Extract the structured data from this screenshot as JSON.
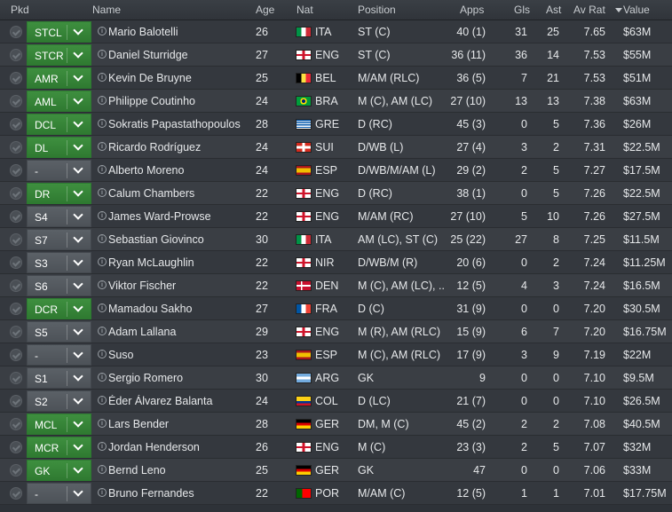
{
  "header": {
    "pkd": "Pkd",
    "name": "Name",
    "age": "Age",
    "nat": "Nat",
    "position": "Position",
    "apps": "Apps",
    "gls": "Gls",
    "ast": "Ast",
    "avrat": "Av Rat",
    "value": "Value",
    "sort_indicator_icon": "caret-down-icon"
  },
  "colors": {
    "assigned_position": "#3e8f3f",
    "unassigned_position": "#5b6167"
  },
  "players": [
    {
      "pos": "STCL",
      "name": "Mario Balotelli",
      "age": "26",
      "nat": "ITA",
      "flag": "ita",
      "position": "ST (C)",
      "apps": "40 (1)",
      "gls": "31",
      "ast": "25",
      "rat": "7.65",
      "value": "$63M",
      "assigned": true
    },
    {
      "pos": "STCR",
      "name": "Daniel Sturridge",
      "age": "27",
      "nat": "ENG",
      "flag": "eng",
      "position": "ST (C)",
      "apps": "36 (11)",
      "gls": "36",
      "ast": "14",
      "rat": "7.53",
      "value": "$55M",
      "assigned": true
    },
    {
      "pos": "AMR",
      "name": "Kevin De Bruyne",
      "age": "25",
      "nat": "BEL",
      "flag": "bel",
      "position": "M/AM (RLC)",
      "apps": "36 (5)",
      "gls": "7",
      "ast": "21",
      "rat": "7.53",
      "value": "$51M",
      "assigned": true
    },
    {
      "pos": "AML",
      "name": "Philippe Coutinho",
      "age": "24",
      "nat": "BRA",
      "flag": "bra",
      "position": "M (C), AM (LC)",
      "apps": "27 (10)",
      "gls": "13",
      "ast": "13",
      "rat": "7.38",
      "value": "$63M",
      "assigned": true
    },
    {
      "pos": "DCL",
      "name": "Sokratis Papastathopoulos",
      "age": "28",
      "nat": "GRE",
      "flag": "gre",
      "position": "D (RC)",
      "apps": "45 (3)",
      "gls": "0",
      "ast": "5",
      "rat": "7.36",
      "value": "$26M",
      "assigned": true
    },
    {
      "pos": "DL",
      "name": "Ricardo Rodríguez",
      "age": "24",
      "nat": "SUI",
      "flag": "sui",
      "position": "D/WB (L)",
      "apps": "27 (4)",
      "gls": "3",
      "ast": "2",
      "rat": "7.31",
      "value": "$22.5M",
      "assigned": true
    },
    {
      "pos": "-",
      "name": "Alberto Moreno",
      "age": "24",
      "nat": "ESP",
      "flag": "esp",
      "position": "D/WB/M/AM (L)",
      "apps": "29 (2)",
      "gls": "2",
      "ast": "5",
      "rat": "7.27",
      "value": "$17.5M",
      "assigned": false
    },
    {
      "pos": "DR",
      "name": "Calum Chambers",
      "age": "22",
      "nat": "ENG",
      "flag": "eng",
      "position": "D (RC)",
      "apps": "38 (1)",
      "gls": "0",
      "ast": "5",
      "rat": "7.26",
      "value": "$22.5M",
      "assigned": true
    },
    {
      "pos": "S4",
      "name": "James Ward-Prowse",
      "age": "22",
      "nat": "ENG",
      "flag": "eng",
      "position": "M/AM (RC)",
      "apps": "27 (10)",
      "gls": "5",
      "ast": "10",
      "rat": "7.26",
      "value": "$27.5M",
      "assigned": false
    },
    {
      "pos": "S7",
      "name": "Sebastian Giovinco",
      "age": "30",
      "nat": "ITA",
      "flag": "ita",
      "position": "AM (LC), ST (C)",
      "apps": "25 (22)",
      "gls": "27",
      "ast": "8",
      "rat": "7.25",
      "value": "$11.5M",
      "assigned": false
    },
    {
      "pos": "S3",
      "name": "Ryan McLaughlin",
      "age": "22",
      "nat": "NIR",
      "flag": "eng",
      "position": "D/WB/M (R)",
      "apps": "20 (6)",
      "gls": "0",
      "ast": "2",
      "rat": "7.24",
      "value": "$11.25M",
      "assigned": false
    },
    {
      "pos": "S6",
      "name": "Viktor Fischer",
      "age": "22",
      "nat": "DEN",
      "flag": "den",
      "position": "M (C), AM (LC), ...",
      "apps": "12 (5)",
      "gls": "4",
      "ast": "3",
      "rat": "7.24",
      "value": "$16.5M",
      "assigned": false
    },
    {
      "pos": "DCR",
      "name": "Mamadou Sakho",
      "age": "27",
      "nat": "FRA",
      "flag": "fra",
      "position": "D (C)",
      "apps": "31 (9)",
      "gls": "0",
      "ast": "0",
      "rat": "7.20",
      "value": "$30.5M",
      "assigned": true
    },
    {
      "pos": "S5",
      "name": "Adam Lallana",
      "age": "29",
      "nat": "ENG",
      "flag": "eng",
      "position": "M (R), AM (RLC)",
      "apps": "15 (9)",
      "gls": "6",
      "ast": "7",
      "rat": "7.20",
      "value": "$16.75M",
      "assigned": false
    },
    {
      "pos": "-",
      "name": "Suso",
      "age": "23",
      "nat": "ESP",
      "flag": "esp",
      "position": "M (C), AM (RLC)",
      "apps": "17 (9)",
      "gls": "3",
      "ast": "9",
      "rat": "7.19",
      "value": "$22M",
      "assigned": false
    },
    {
      "pos": "S1",
      "name": "Sergio Romero",
      "age": "30",
      "nat": "ARG",
      "flag": "arg",
      "position": "GK",
      "apps": "9",
      "gls": "0",
      "ast": "0",
      "rat": "7.10",
      "value": "$9.5M",
      "assigned": false
    },
    {
      "pos": "S2",
      "name": "Éder Álvarez Balanta",
      "age": "24",
      "nat": "COL",
      "flag": "col",
      "position": "D (LC)",
      "apps": "21 (7)",
      "gls": "0",
      "ast": "0",
      "rat": "7.10",
      "value": "$26.5M",
      "assigned": false
    },
    {
      "pos": "MCL",
      "name": "Lars Bender",
      "age": "28",
      "nat": "GER",
      "flag": "ger",
      "position": "DM, M (C)",
      "apps": "45 (2)",
      "gls": "2",
      "ast": "2",
      "rat": "7.08",
      "value": "$40.5M",
      "assigned": true
    },
    {
      "pos": "MCR",
      "name": "Jordan Henderson",
      "age": "26",
      "nat": "ENG",
      "flag": "eng",
      "position": "M (C)",
      "apps": "23 (3)",
      "gls": "2",
      "ast": "5",
      "rat": "7.07",
      "value": "$32M",
      "assigned": true
    },
    {
      "pos": "GK",
      "name": "Bernd Leno",
      "age": "25",
      "nat": "GER",
      "flag": "ger",
      "position": "GK",
      "apps": "47",
      "gls": "0",
      "ast": "0",
      "rat": "7.06",
      "value": "$33M",
      "assigned": true
    },
    {
      "pos": "-",
      "name": "Bruno Fernandes",
      "age": "22",
      "nat": "POR",
      "flag": "por",
      "position": "M/AM (C)",
      "apps": "12 (5)",
      "gls": "1",
      "ast": "1",
      "rat": "7.01",
      "value": "$17.75M",
      "assigned": false
    }
  ]
}
